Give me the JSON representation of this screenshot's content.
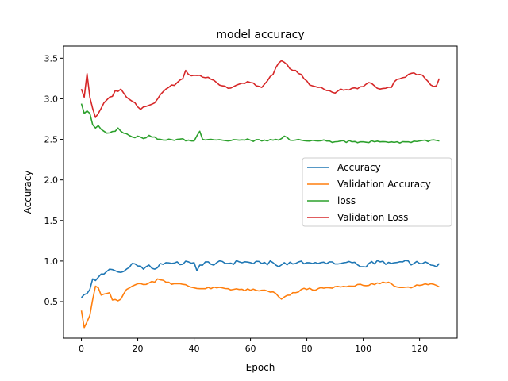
{
  "chart_data": {
    "type": "line",
    "title": "model accuracy",
    "xlabel": "Epoch",
    "ylabel": "Accuracy",
    "xlim": [
      -6.35,
      133.35
    ],
    "ylim": [
      0.05,
      3.65
    ],
    "xticks": [
      0,
      20,
      40,
      60,
      80,
      100,
      120
    ],
    "yticks": [
      0.5,
      1.0,
      1.5,
      2.0,
      2.5,
      3.0,
      3.5
    ],
    "xtick_labels": [
      "0",
      "20",
      "40",
      "60",
      "80",
      "100",
      "120"
    ],
    "ytick_labels": [
      "0.5",
      "1.0",
      "1.5",
      "2.0",
      "2.5",
      "3.0",
      "3.5"
    ],
    "grid": false,
    "legend_position": "center-right",
    "series": [
      {
        "name": "Accuracy",
        "color": "#1f77b4",
        "anchors": [
          [
            0,
            0.55
          ],
          [
            2,
            0.6
          ],
          [
            3,
            0.65
          ],
          [
            4,
            0.78
          ],
          [
            5,
            0.76
          ],
          [
            6,
            0.8
          ],
          [
            7,
            0.84
          ],
          [
            8,
            0.84
          ],
          [
            10,
            0.9
          ],
          [
            12,
            0.88
          ],
          [
            14,
            0.86
          ],
          [
            16,
            0.9
          ],
          [
            18,
            0.97
          ],
          [
            20,
            0.94
          ],
          [
            22,
            0.9
          ],
          [
            24,
            0.95
          ],
          [
            26,
            0.9
          ],
          [
            28,
            0.97
          ],
          [
            30,
            0.98
          ],
          [
            32,
            0.97
          ],
          [
            34,
            0.99
          ],
          [
            36,
            0.96
          ],
          [
            38,
            0.99
          ],
          [
            40,
            0.98
          ],
          [
            41,
            0.88
          ],
          [
            42,
            0.95
          ],
          [
            44,
            0.99
          ],
          [
            46,
            0.96
          ],
          [
            48,
            0.98
          ],
          [
            52,
            0.97
          ],
          [
            56,
            0.99
          ],
          [
            60,
            0.98
          ],
          [
            64,
            0.97
          ],
          [
            68,
            0.98
          ],
          [
            70,
            0.93
          ],
          [
            72,
            0.98
          ],
          [
            76,
            0.97
          ],
          [
            80,
            0.98
          ],
          [
            84,
            0.97
          ],
          [
            88,
            0.99
          ],
          [
            92,
            0.97
          ],
          [
            96,
            0.98
          ],
          [
            100,
            0.93
          ],
          [
            102,
            0.97
          ],
          [
            106,
            0.99
          ],
          [
            110,
            0.97
          ],
          [
            114,
            0.99
          ],
          [
            118,
            0.97
          ],
          [
            122,
            0.99
          ],
          [
            124,
            0.95
          ],
          [
            126,
            0.93
          ],
          [
            127,
            0.97
          ]
        ],
        "noise": 0.025
      },
      {
        "name": "Validation Accuracy",
        "color": "#ff7f0e",
        "anchors": [
          [
            0,
            0.39
          ],
          [
            1,
            0.18
          ],
          [
            3,
            0.33
          ],
          [
            5,
            0.69
          ],
          [
            6,
            0.67
          ],
          [
            7,
            0.58
          ],
          [
            9,
            0.6
          ],
          [
            10,
            0.61
          ],
          [
            11,
            0.52
          ],
          [
            13,
            0.51
          ],
          [
            14,
            0.53
          ],
          [
            16,
            0.65
          ],
          [
            18,
            0.69
          ],
          [
            20,
            0.72
          ],
          [
            24,
            0.73
          ],
          [
            26,
            0.74
          ],
          [
            27,
            0.78
          ],
          [
            30,
            0.74
          ],
          [
            34,
            0.72
          ],
          [
            38,
            0.69
          ],
          [
            40,
            0.67
          ],
          [
            42,
            0.66
          ],
          [
            46,
            0.66
          ],
          [
            50,
            0.67
          ],
          [
            52,
            0.66
          ],
          [
            56,
            0.65
          ],
          [
            60,
            0.64
          ],
          [
            64,
            0.64
          ],
          [
            68,
            0.62
          ],
          [
            70,
            0.56
          ],
          [
            71,
            0.53
          ],
          [
            74,
            0.58
          ],
          [
            76,
            0.61
          ],
          [
            78,
            0.65
          ],
          [
            80,
            0.65
          ],
          [
            84,
            0.66
          ],
          [
            88,
            0.67
          ],
          [
            92,
            0.68
          ],
          [
            96,
            0.69
          ],
          [
            100,
            0.7
          ],
          [
            104,
            0.71
          ],
          [
            108,
            0.73
          ],
          [
            110,
            0.72
          ],
          [
            112,
            0.68
          ],
          [
            116,
            0.68
          ],
          [
            120,
            0.7
          ],
          [
            124,
            0.72
          ],
          [
            126,
            0.7
          ],
          [
            127,
            0.68
          ]
        ],
        "noise": 0.018
      },
      {
        "name": "loss",
        "color": "#2ca02c",
        "anchors": [
          [
            0,
            2.94
          ],
          [
            1,
            2.82
          ],
          [
            2,
            2.85
          ],
          [
            3,
            2.82
          ],
          [
            4,
            2.68
          ],
          [
            5,
            2.64
          ],
          [
            6,
            2.67
          ],
          [
            8,
            2.6
          ],
          [
            10,
            2.58
          ],
          [
            12,
            2.6
          ],
          [
            13,
            2.64
          ],
          [
            14,
            2.6
          ],
          [
            16,
            2.57
          ],
          [
            18,
            2.53
          ],
          [
            20,
            2.54
          ],
          [
            22,
            2.51
          ],
          [
            24,
            2.55
          ],
          [
            26,
            2.53
          ],
          [
            28,
            2.5
          ],
          [
            30,
            2.49
          ],
          [
            34,
            2.5
          ],
          [
            38,
            2.49
          ],
          [
            40,
            2.48
          ],
          [
            42,
            2.6
          ],
          [
            43,
            2.5
          ],
          [
            46,
            2.5
          ],
          [
            50,
            2.49
          ],
          [
            52,
            2.48
          ],
          [
            56,
            2.49
          ],
          [
            60,
            2.49
          ],
          [
            64,
            2.48
          ],
          [
            68,
            2.49
          ],
          [
            70,
            2.49
          ],
          [
            72,
            2.54
          ],
          [
            74,
            2.49
          ],
          [
            78,
            2.49
          ],
          [
            80,
            2.48
          ],
          [
            84,
            2.48
          ],
          [
            88,
            2.48
          ],
          [
            90,
            2.47
          ],
          [
            92,
            2.48
          ],
          [
            96,
            2.47
          ],
          [
            100,
            2.47
          ],
          [
            104,
            2.47
          ],
          [
            108,
            2.47
          ],
          [
            112,
            2.47
          ],
          [
            116,
            2.47
          ],
          [
            120,
            2.48
          ],
          [
            124,
            2.49
          ],
          [
            127,
            2.48
          ]
        ],
        "noise": 0.015
      },
      {
        "name": "Validation Loss",
        "color": "#d62728",
        "anchors": [
          [
            0,
            3.12
          ],
          [
            1,
            3.02
          ],
          [
            2,
            3.31
          ],
          [
            3,
            3.02
          ],
          [
            5,
            2.77
          ],
          [
            6,
            2.82
          ],
          [
            8,
            2.95
          ],
          [
            10,
            3.02
          ],
          [
            11,
            3.03
          ],
          [
            12,
            3.1
          ],
          [
            14,
            3.12
          ],
          [
            15,
            3.07
          ],
          [
            16,
            3.02
          ],
          [
            18,
            2.97
          ],
          [
            20,
            2.9
          ],
          [
            21,
            2.87
          ],
          [
            22,
            2.9
          ],
          [
            24,
            2.92
          ],
          [
            26,
            2.95
          ],
          [
            28,
            3.05
          ],
          [
            30,
            3.12
          ],
          [
            32,
            3.17
          ],
          [
            34,
            3.2
          ],
          [
            36,
            3.25
          ],
          [
            37,
            3.35
          ],
          [
            38,
            3.3
          ],
          [
            40,
            3.29
          ],
          [
            42,
            3.29
          ],
          [
            44,
            3.26
          ],
          [
            46,
            3.24
          ],
          [
            48,
            3.2
          ],
          [
            50,
            3.16
          ],
          [
            52,
            3.13
          ],
          [
            54,
            3.15
          ],
          [
            56,
            3.18
          ],
          [
            58,
            3.19
          ],
          [
            60,
            3.2
          ],
          [
            62,
            3.16
          ],
          [
            64,
            3.14
          ],
          [
            66,
            3.22
          ],
          [
            68,
            3.3
          ],
          [
            70,
            3.44
          ],
          [
            71,
            3.47
          ],
          [
            72,
            3.45
          ],
          [
            74,
            3.37
          ],
          [
            76,
            3.35
          ],
          [
            78,
            3.3
          ],
          [
            80,
            3.22
          ],
          [
            82,
            3.16
          ],
          [
            84,
            3.14
          ],
          [
            86,
            3.12
          ],
          [
            88,
            3.1
          ],
          [
            90,
            3.07
          ],
          [
            92,
            3.12
          ],
          [
            96,
            3.13
          ],
          [
            100,
            3.15
          ],
          [
            102,
            3.2
          ],
          [
            104,
            3.16
          ],
          [
            106,
            3.12
          ],
          [
            108,
            3.13
          ],
          [
            110,
            3.14
          ],
          [
            112,
            3.24
          ],
          [
            114,
            3.26
          ],
          [
            116,
            3.3
          ],
          [
            118,
            3.32
          ],
          [
            120,
            3.3
          ],
          [
            122,
            3.25
          ],
          [
            124,
            3.17
          ],
          [
            126,
            3.16
          ],
          [
            127,
            3.25
          ]
        ],
        "noise": 0.02
      }
    ]
  }
}
